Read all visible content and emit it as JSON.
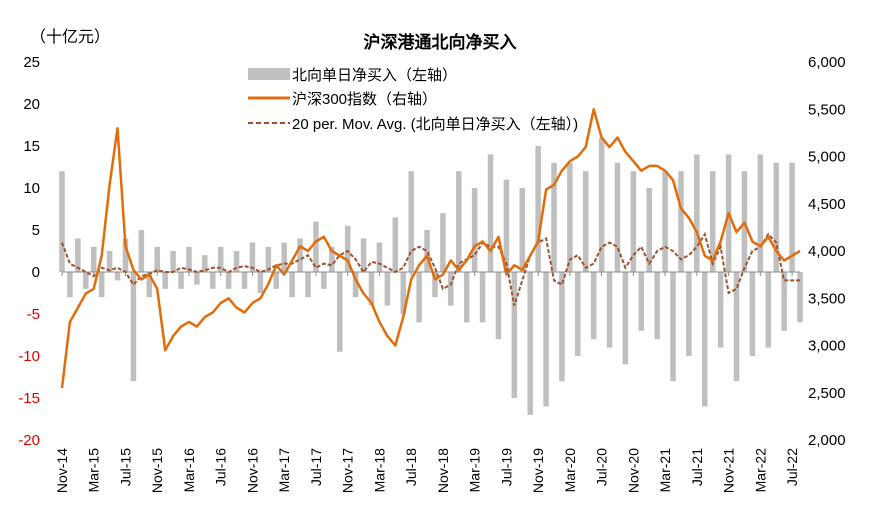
{
  "chart_data": {
    "type": "bar+line",
    "title": "沪深港通北向净买入",
    "left_axis_unit": "（十亿元）",
    "ylim_left": [
      -20,
      25
    ],
    "ylim_right": [
      2000,
      6000
    ],
    "left_ticks": [
      "25",
      "20",
      "15",
      "10",
      "5",
      "0",
      "-5",
      "-10",
      "-15",
      "-20"
    ],
    "left_tick_values": [
      25,
      20,
      15,
      10,
      5,
      0,
      -5,
      -10,
      -15,
      -20
    ],
    "right_ticks": [
      "6,000",
      "5,500",
      "5,000",
      "4,500",
      "4,000",
      "3,500",
      "3,000",
      "2,500",
      "2,000"
    ],
    "right_tick_values": [
      6000,
      5500,
      5000,
      4500,
      4000,
      3500,
      3000,
      2500,
      2000
    ],
    "x_ticks": [
      "Nov-14",
      "Mar-15",
      "Jul-15",
      "Nov-15",
      "Mar-16",
      "Jul-16",
      "Nov-16",
      "Mar-17",
      "Jul-17",
      "Nov-17",
      "Mar-18",
      "Jul-18",
      "Nov-18",
      "Mar-19",
      "Jul-19",
      "Nov-19",
      "Mar-20",
      "Jul-20",
      "Nov-20",
      "Mar-21",
      "Jul-21",
      "Nov-21",
      "Mar-22",
      "Jul-22"
    ],
    "legend": [
      {
        "label": "北向单日净买入（左轴）",
        "color": "#bfbfbf",
        "kind": "bar"
      },
      {
        "label": "沪深300指数（右轴）",
        "color": "#e36c0a",
        "kind": "line"
      },
      {
        "label": "20 per. Mov. Avg. (北向单日净买入（左轴）)",
        "color": "#a0522d",
        "kind": "dashed"
      }
    ],
    "colors": {
      "bars": "#bfbfbf",
      "index": "#e36c0a",
      "ma": "#a0522d",
      "negative_tick": "#e00000"
    },
    "x_months": [
      0,
      1,
      2,
      3,
      4,
      5,
      6,
      7,
      8,
      9,
      10,
      11,
      12,
      13,
      14,
      15,
      16,
      17,
      18,
      19,
      20,
      21,
      22,
      23,
      24,
      25,
      26,
      27,
      28,
      29,
      30,
      31,
      32,
      33,
      34,
      35,
      36,
      37,
      38,
      39,
      40,
      41,
      42,
      43,
      44,
      45,
      46,
      47,
      48,
      49,
      50,
      51,
      52,
      53,
      54,
      55,
      56,
      57,
      58,
      59,
      60,
      61,
      62,
      63,
      64,
      65,
      66,
      67,
      68,
      69,
      70,
      71,
      72,
      73,
      74,
      75,
      76,
      77,
      78,
      79,
      80,
      81,
      82,
      83,
      84,
      85,
      86,
      87,
      88,
      89,
      90,
      91,
      92,
      93
    ],
    "series": [
      {
        "name": "沪深300指数（右轴）",
        "axis": "right",
        "values": [
          2550,
          3250,
          3400,
          3550,
          3600,
          3950,
          4700,
          5300,
          4050,
          3800,
          3700,
          3750,
          3600,
          2950,
          3100,
          3200,
          3250,
          3200,
          3300,
          3350,
          3450,
          3500,
          3400,
          3350,
          3450,
          3500,
          3650,
          3850,
          3750,
          3900,
          4050,
          4000,
          4100,
          4150,
          4000,
          3950,
          3900,
          3700,
          3550,
          3450,
          3250,
          3100,
          3000,
          3300,
          3700,
          3850,
          3950,
          3700,
          3750,
          3900,
          3800,
          3900,
          4050,
          4100,
          4000,
          4150,
          3750,
          3850,
          3800,
          3950,
          4100,
          4650,
          4700,
          4850,
          4950,
          5000,
          5100,
          5500,
          5200,
          5100,
          5200,
          5050,
          4950,
          4850,
          4900,
          4900,
          4850,
          4750,
          4450,
          4350,
          4200,
          3950,
          3900,
          4100,
          4400,
          4200,
          4300,
          4100,
          4050,
          4150,
          4000,
          3900,
          3950,
          4000
        ]
      },
      {
        "name": "20 per. Mov. Avg. (北向单日净买入（左轴）)",
        "axis": "left",
        "values": [
          3.5,
          1.0,
          0.5,
          0.0,
          -0.5,
          0.5,
          0.2,
          0.5,
          0.0,
          -1.5,
          -0.5,
          -0.2,
          0.2,
          0.0,
          0.0,
          0.5,
          0.3,
          0.0,
          0.2,
          0.5,
          0.5,
          0.0,
          0.5,
          0.7,
          0.5,
          0.0,
          0.3,
          0.8,
          1.0,
          1.0,
          1.5,
          2.0,
          0.5,
          1.0,
          0.8,
          2.0,
          2.5,
          1.5,
          0.0,
          1.2,
          1.0,
          0.5,
          0.0,
          0.5,
          2.5,
          3.0,
          2.5,
          0.5,
          -2.0,
          -1.5,
          1.0,
          1.5,
          2.0,
          3.5,
          3.0,
          3.0,
          1.0,
          -4.0,
          -1.0,
          2.0,
          3.5,
          4.0,
          -1.0,
          -1.5,
          1.5,
          2.0,
          0.5,
          1.0,
          3.0,
          3.5,
          3.0,
          0.5,
          2.0,
          3.0,
          1.0,
          2.5,
          3.0,
          2.5,
          1.5,
          2.0,
          3.0,
          4.5,
          1.0,
          3.0,
          -2.5,
          -2.0,
          0.5,
          2.5,
          3.0,
          4.5,
          3.5,
          -1.0,
          -1.0,
          -1.0
        ]
      },
      {
        "name": "北向单日净买入（左轴）",
        "axis": "left",
        "kind": "bars",
        "values": [
          12.0,
          -3.0,
          4.0,
          -2.0,
          3.0,
          -3.0,
          2.5,
          -1.0,
          4.0,
          -13.0,
          5.0,
          -3.0,
          3.0,
          -2.0,
          2.5,
          -2.0,
          3.0,
          -1.5,
          2.0,
          -2.0,
          3.0,
          -2.0,
          2.5,
          -2.0,
          3.5,
          -2.5,
          3.0,
          -2.0,
          3.5,
          -3.0,
          4.0,
          -3.0,
          6.0,
          -2.0,
          3.0,
          -9.5,
          5.5,
          -3.0,
          4.0,
          -4.0,
          3.5,
          -4.0,
          6.5,
          -5.0,
          12.0,
          -6.0,
          5.0,
          -3.0,
          7.0,
          -4.0,
          12.0,
          -6.0,
          10.0,
          -6.0,
          14.0,
          -8.0,
          11.0,
          -15.0,
          10.0,
          -17.0,
          15.0,
          -16.0,
          13.0,
          -13.0,
          13.0,
          -10.0,
          12.0,
          -8.0,
          16.0,
          -9.0,
          13.0,
          -11.0,
          12.0,
          -7.0,
          10.0,
          -8.0,
          12.0,
          -13.0,
          12.0,
          -10.0,
          14.0,
          -16.0,
          12.0,
          -9.0,
          14.0,
          -13.0,
          12.0,
          -10.0,
          14.0,
          -9.0,
          13.0,
          -7.0,
          13.0,
          -6.0
        ]
      }
    ]
  }
}
